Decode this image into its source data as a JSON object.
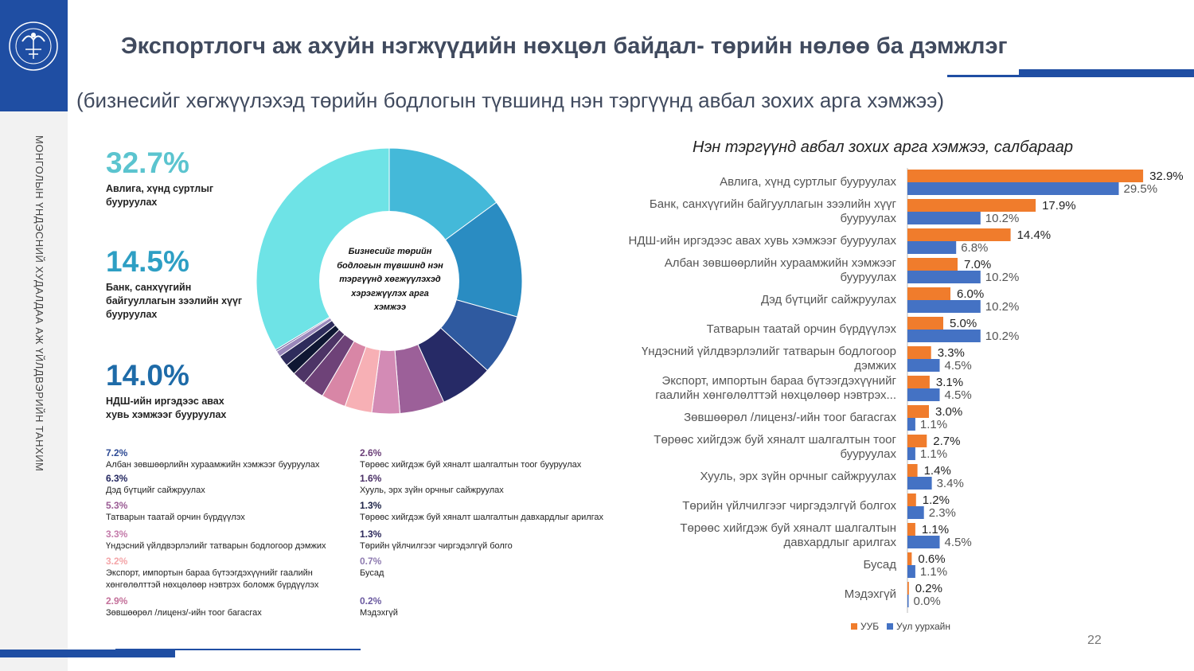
{
  "header": {
    "title": "Экспортлогч аж ахуйн нэгжүүдийн нөхцөл байдал- төрийн нөлөө ба дэмжлэг",
    "subtitle": "(бизнесийг хөгжүүлэхэд төрийн бодлогын түвшинд нэн тэргүүнд авбал зохих арга хэмжээ)"
  },
  "sidebar": {
    "vertical_text": "МОНГОЛЫН ҮНДЭСНИЙ ХУДАЛДАА АЖ ҮЙЛДВЭРИЙН ТАНХИМ",
    "logo": "chamber-logo"
  },
  "kpis": [
    {
      "value": "32.7%",
      "label": "Авлига, хүнд суртлыг бууруулах",
      "color": "#5bc4cf"
    },
    {
      "value": "14.5%",
      "label": "Банк, санхүүгийн байгууллагын зээлийн хүүг бууруулах",
      "color": "#2e9fc4"
    },
    {
      "value": "14.0%",
      "label": "НДШ-ийн иргэдээс авах хувь хэмжээг бууруулах",
      "color": "#1e6ba8"
    }
  ],
  "donut": {
    "center_text": "Бизнесийг төрийн бодлогын түвшинд нэн тэргүүнд хөгжүүлэхэд хэрэгжүүлэх арга хэмжээ"
  },
  "legend_items": [
    {
      "value": "7.2%",
      "label": "Албан зөвшөөрлийн хураамжийн хэмжээг бууруулах",
      "color": "#2d4a94"
    },
    {
      "value": "6.3%",
      "label": "Дэд бүтцийг сайжруулах",
      "color": "#232760"
    },
    {
      "value": "5.3%",
      "label": "Татварын таатай орчин бүрдүүлэх",
      "color": "#9a5b94"
    },
    {
      "value": "3.3%",
      "label": "Үндэсний үйлдвэрлэлийг татварын бодлогоор дэмжих",
      "color": "#c47aaa"
    },
    {
      "value": "3.2%",
      "label": "Экспорт, импортын бараа бүтээгдэхүүнийг гаалийн хөнгөлөлттэй нөхцөлөөр нэвтрэх боломж бүрдүүлэх",
      "color": "#f4a5a8"
    },
    {
      "value": "2.9%",
      "label": "Зөвшөөрөл /лиценз/-ийн тоог багасгах",
      "color": "#c4709a"
    },
    {
      "value": "2.6%",
      "label": "Төрөөс хийгдэж буй хяналт шалгалтын тоог бууруулах",
      "color": "#6b3f78"
    },
    {
      "value": "1.6%",
      "label": "Хууль, эрх зүйн орчныг сайжруулах",
      "color": "#4b3167"
    },
    {
      "value": "1.3%",
      "label": "Төрөөс хийгдэж буй хяналт шалгалтын давхардлыг арилгах",
      "color": "#1d2347"
    },
    {
      "value": "1.3%",
      "label": "Төрийн үйлчилгээг чиргэдэлгүй болго",
      "color": "#2d2a5c"
    },
    {
      "value": "0.7%",
      "label": "Бусад",
      "color": "#8e7bb0"
    },
    {
      "value": "0.2%",
      "label": "Мэдэхгүй",
      "color": "#6b5aa0"
    }
  ],
  "chart_data": [
    {
      "type": "pie",
      "donut": true,
      "slices": [
        {
          "label": "Авлига, хүнд суртлыг бууруулах",
          "value": 32.7,
          "color": "#6ee3e6"
        },
        {
          "label": "Банк, санхүүгийн байгууллагын зээлийн хүүг бууруулах",
          "value": 14.5,
          "color": "#44b9d9"
        },
        {
          "label": "НДШ-ийн иргэдээс авах хувь хэмжээг бууруулах",
          "value": 14.0,
          "color": "#2a8cc2"
        },
        {
          "label": "Албан зөвшөөрлийн хураамжийн хэмжээг бууруулах",
          "value": 7.2,
          "color": "#2f5aa0"
        },
        {
          "label": "Дэд бүтцийг сайжруулах",
          "value": 6.3,
          "color": "#262a66"
        },
        {
          "label": "Татварын таатай орчин бүрдүүлэх",
          "value": 5.3,
          "color": "#9c6099"
        },
        {
          "label": "Үндэсний үйлдвэрлэлийг татварын бодлогоор дэмжих",
          "value": 3.3,
          "color": "#d38bb5"
        },
        {
          "label": "Экспорт, импортын бараа бүтээгдэхүүнийг гаалийн хөнгөлөлттэй нөхцөлөөр нэвтрэх боломж бүрдүүлэх",
          "value": 3.2,
          "color": "#f7b0b5"
        },
        {
          "label": "Зөвшөөрөл /лиценз/-ийн тоог багасгах",
          "value": 2.9,
          "color": "#d886a6"
        },
        {
          "label": "Төрөөс хийгдэж буй хяналт шалгалтын тоог бууруулах",
          "value": 2.6,
          "color": "#6e4278"
        },
        {
          "label": "Хууль, эрх зүйн орчныг сайжруулах",
          "value": 1.6,
          "color": "#4d3466"
        },
        {
          "label": "Төрөөс хийгдэж буй хяналт шалгалтын давхардлыг арилгах",
          "value": 1.3,
          "color": "#0f1733"
        },
        {
          "label": "Төрийн үйлчилгээг чиргэдэлгүй болго",
          "value": 1.3,
          "color": "#2e2c5c"
        },
        {
          "label": "Бусад",
          "value": 0.7,
          "color": "#9a88bb"
        },
        {
          "label": "Мэдэхгүй",
          "value": 0.2,
          "color": "#6b5aa0"
        }
      ]
    },
    {
      "type": "bar",
      "orientation": "horizontal",
      "title": "Нэн тэргүүнд авбал зохих арга хэмжээ, салбараар",
      "categories": [
        "Авлига, хүнд суртлыг бууруулах",
        "Банк, санхүүгийн байгууллагын зээлийн хүүг бууруулах",
        "НДШ-ийн иргэдээс авах хувь хэмжээг бууруулах",
        "Албан зөвшөөрлийн хураамжийн хэмжээг бууруулах",
        "Дэд бүтцийг сайжруулах",
        "Татварын таатай орчин бүрдүүлэх",
        "Үндэсний үйлдвэрлэлийг татварын бодлогоор дэмжих",
        "Экспорт, импортын бараа бүтээгдэхүүнийг гаалийн хөнгөлөлттэй нөхцөлөөр нэвтрэх...",
        "Зөвшөөрөл /лиценз/-ийн тоог багасгах",
        "Төрөөс хийгдэж буй хяналт шалгалтын тоог бууруулах",
        "Хууль, эрх зүйн орчныг сайжруулах",
        "Төрийн үйлчилгээг чиргэдэлгүй болгох",
        "Төрөөс хийгдэж буй хяналт шалгалтын давхардлыг арилгах",
        "Бусад",
        "Мэдэхгүй"
      ],
      "series": [
        {
          "name": "УУБ",
          "color": "#f07c2c",
          "values": [
            32.9,
            17.9,
            14.4,
            7.0,
            6.0,
            5.0,
            3.3,
            3.1,
            3.0,
            2.7,
            1.4,
            1.2,
            1.1,
            0.6,
            0.2
          ]
        },
        {
          "name": "Уул уурхайн",
          "color": "#4472c4",
          "values": [
            29.5,
            10.2,
            6.8,
            10.2,
            10.2,
            10.2,
            4.5,
            4.5,
            1.1,
            1.1,
            3.4,
            2.3,
            4.5,
            1.1,
            0.0
          ]
        }
      ],
      "data_labels": {
        "s0": [
          "32.9%",
          "17.9%",
          "14.4%",
          "7.0%",
          "6.0%",
          "5.0%",
          "3.3%",
          "3.1%",
          "3.0%",
          "2.7%",
          "1.4%",
          "1.2%",
          "1.1%",
          "0.6%",
          "0.2%"
        ],
        "s1": [
          "29.5%",
          "10.2%",
          "6.8%",
          "10.2%",
          "10.2%",
          "10.2%",
          "4.5%",
          "4.5%",
          "1.1%",
          "1.1%",
          "3.4%",
          "2.3%",
          "4.5%",
          "1.1%",
          "0.0%"
        ]
      },
      "legend_position": "bottom",
      "grid": false
    }
  ],
  "footer": {
    "page_number": "22"
  }
}
